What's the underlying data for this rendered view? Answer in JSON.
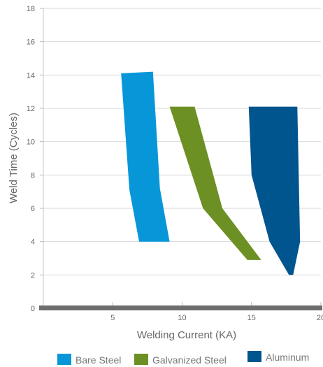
{
  "chart_data": {
    "type": "area",
    "title": "",
    "xlabel": "Welding Current (KA)",
    "ylabel": "Weld Time (Cycles)",
    "xlim": [
      0,
      20
    ],
    "ylim": [
      0,
      18
    ],
    "xticks": [
      5,
      10,
      15,
      20
    ],
    "yticks": [
      0,
      2,
      4,
      6,
      8,
      10,
      12,
      14,
      16,
      18
    ],
    "grid": "horizontal",
    "legend_position": "bottom",
    "series": [
      {
        "name": "Bare Steel",
        "color": "#0797d9",
        "polygon": [
          [
            5.6,
            14.1
          ],
          [
            7.9,
            14.2
          ],
          [
            8.4,
            7.2
          ],
          [
            9.1,
            4.0
          ],
          [
            6.9,
            4.0
          ],
          [
            6.2,
            7.1
          ]
        ]
      },
      {
        "name": "Galvanized Steel",
        "color": "#6d9024",
        "polygon": [
          [
            9.1,
            12.1
          ],
          [
            10.9,
            12.1
          ],
          [
            12.9,
            6.0
          ],
          [
            15.7,
            2.9
          ],
          [
            14.7,
            2.9
          ],
          [
            11.5,
            6.0
          ]
        ]
      },
      {
        "name": "Aluminum",
        "color": "#00558f",
        "polygon": [
          [
            14.8,
            12.1
          ],
          [
            18.3,
            12.1
          ],
          [
            18.5,
            4.0
          ],
          [
            18.0,
            2.0
          ],
          [
            17.7,
            2.0
          ],
          [
            16.3,
            4.0
          ],
          [
            15.0,
            8.0
          ]
        ]
      }
    ]
  }
}
